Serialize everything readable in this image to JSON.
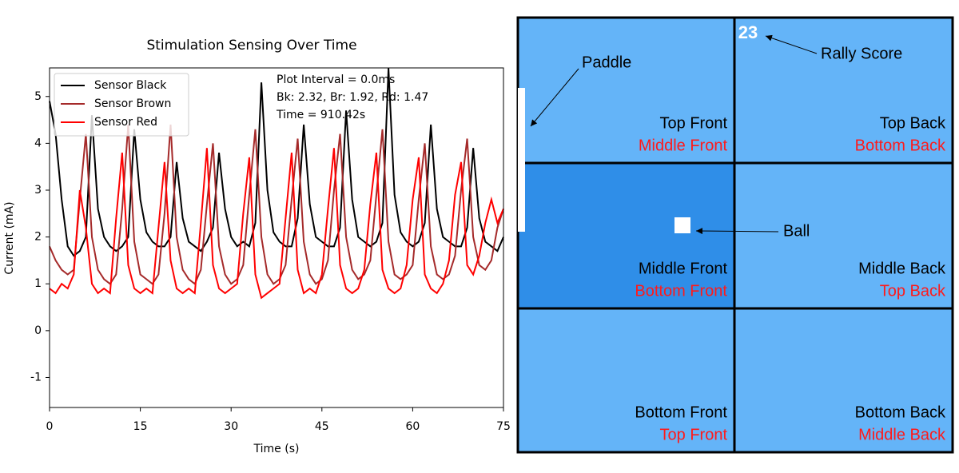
{
  "chart_data": {
    "type": "line",
    "title": "Stimulation Sensing Over Time",
    "xlabel": "Time (s)",
    "ylabel": "Current (mA)",
    "x": [
      0,
      1,
      2,
      3,
      4,
      5,
      6,
      7,
      8,
      9,
      10,
      11,
      12,
      13,
      14,
      15,
      16,
      17,
      18,
      19,
      20,
      21,
      22,
      23,
      24,
      25,
      26,
      27,
      28,
      29,
      30,
      31,
      32,
      33,
      34,
      35,
      36,
      37,
      38,
      39,
      40,
      41,
      42,
      43,
      44,
      45,
      46,
      47,
      48,
      49,
      50,
      51,
      52,
      53,
      54,
      55,
      56,
      57,
      58,
      59,
      60,
      61,
      62,
      63,
      64,
      65,
      66,
      67,
      68,
      69,
      70,
      71,
      72,
      73,
      74,
      75
    ],
    "series": [
      {
        "name": "Sensor Black",
        "color": "#000000",
        "values": [
          4.9,
          4.2,
          2.8,
          1.8,
          1.6,
          1.7,
          2.0,
          4.6,
          2.6,
          2.0,
          1.8,
          1.7,
          1.8,
          2.0,
          4.3,
          2.8,
          2.1,
          1.9,
          1.8,
          1.8,
          2.0,
          3.6,
          2.4,
          1.9,
          1.8,
          1.7,
          1.9,
          2.2,
          3.8,
          2.6,
          2.0,
          1.8,
          1.9,
          1.8,
          2.3,
          5.3,
          3.0,
          2.1,
          1.9,
          1.8,
          1.8,
          2.4,
          4.4,
          2.7,
          2.0,
          1.9,
          1.8,
          1.8,
          2.2,
          4.7,
          2.8,
          2.0,
          1.9,
          1.8,
          1.9,
          2.3,
          5.6,
          2.9,
          2.1,
          1.9,
          1.8,
          1.9,
          2.3,
          4.4,
          2.6,
          2.0,
          1.9,
          1.8,
          1.8,
          2.2,
          3.9,
          2.4,
          1.9,
          1.8,
          1.7,
          2.0
        ]
      },
      {
        "name": "Sensor Brown",
        "color": "#a52a2a",
        "values": [
          1.8,
          1.5,
          1.3,
          1.2,
          1.3,
          2.8,
          4.2,
          2.0,
          1.3,
          1.1,
          1.0,
          1.2,
          2.6,
          4.4,
          1.9,
          1.2,
          1.1,
          1.0,
          1.2,
          2.5,
          4.4,
          2.0,
          1.3,
          1.1,
          1.0,
          1.3,
          2.7,
          4.0,
          1.8,
          1.2,
          1.0,
          1.1,
          1.4,
          2.9,
          4.3,
          2.0,
          1.2,
          1.0,
          1.1,
          1.4,
          2.8,
          4.1,
          1.9,
          1.2,
          1.0,
          1.1,
          1.5,
          3.0,
          4.2,
          2.0,
          1.3,
          1.1,
          1.2,
          1.5,
          2.9,
          4.3,
          1.9,
          1.2,
          1.1,
          1.2,
          1.4,
          2.8,
          4.0,
          1.8,
          1.2,
          1.1,
          1.2,
          1.6,
          3.0,
          4.1,
          2.0,
          1.4,
          1.3,
          1.5,
          2.2,
          2.6
        ]
      },
      {
        "name": "Sensor Red",
        "color": "#ff0000",
        "values": [
          0.9,
          0.8,
          1.0,
          0.9,
          1.2,
          3.0,
          2.2,
          1.0,
          0.8,
          0.9,
          0.8,
          2.4,
          3.8,
          1.4,
          0.9,
          0.8,
          0.9,
          0.8,
          2.2,
          3.6,
          1.5,
          0.9,
          0.8,
          0.9,
          0.8,
          2.3,
          3.9,
          1.4,
          0.9,
          0.8,
          0.9,
          1.0,
          2.5,
          3.7,
          1.2,
          0.7,
          0.8,
          0.9,
          1.0,
          2.4,
          3.8,
          1.3,
          0.8,
          0.9,
          0.8,
          1.2,
          2.6,
          3.9,
          1.4,
          0.9,
          0.8,
          0.9,
          1.3,
          2.7,
          3.8,
          1.3,
          0.9,
          0.8,
          0.9,
          1.4,
          2.8,
          3.7,
          1.2,
          0.9,
          0.8,
          1.0,
          1.5,
          2.9,
          3.6,
          1.4,
          1.2,
          1.6,
          2.3,
          2.8,
          2.3,
          2.6
        ]
      }
    ],
    "xlim": [
      0,
      75
    ],
    "xticks": [
      0,
      15,
      30,
      45,
      60,
      75
    ],
    "ylim": [
      -1.64,
      5.61
    ],
    "yticks": [
      -1,
      0,
      1,
      2,
      3,
      4,
      5
    ],
    "legend": "upper left",
    "annotations": [
      "Plot Interval = 0.0ms",
      "Bk: 2.32, Br: 1.92, Rd: 1.47",
      "Time = 910.42s"
    ]
  },
  "game": {
    "score": "23",
    "labels": {
      "paddle": "Paddle",
      "rally_score": "Rally Score",
      "ball": "Ball"
    },
    "cells": [
      {
        "label": "Top Front",
        "sublabel": "Middle Front"
      },
      {
        "label": "Top Back",
        "sublabel": "Bottom Back"
      },
      {
        "label": "Middle Front",
        "sublabel": "Bottom Front"
      },
      {
        "label": "Middle Back",
        "sublabel": "Top Back"
      },
      {
        "label": "Bottom Front",
        "sublabel": "Top Front"
      },
      {
        "label": "Bottom Back",
        "sublabel": "Middle Back"
      }
    ]
  }
}
